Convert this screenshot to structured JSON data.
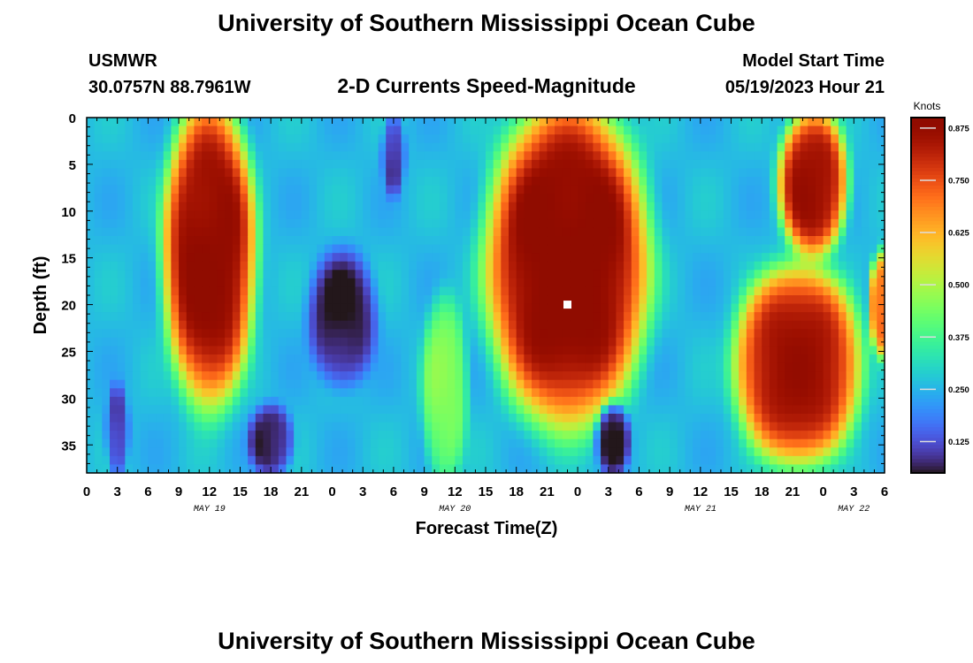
{
  "header": {
    "title": "University of Southern Mississippi Ocean Cube",
    "station": "USMWR",
    "coords": "30.0757N  88.7961W",
    "product": "2-D Currents Speed-Magnitude",
    "model_label": "Model Start Time",
    "model_time": "05/19/2023 Hour 21"
  },
  "footer": {
    "title": "University of Southern Mississippi Ocean Cube"
  },
  "chart_data": {
    "type": "heatmap",
    "title": "2-D Currents Speed-Magnitude",
    "xlabel": "Forecast Time(Z)",
    "ylabel": "Depth (ft)",
    "x_range_hours": [
      0,
      78
    ],
    "y_range_ft": [
      0,
      38
    ],
    "y_inverted": true,
    "xticks": [
      "0",
      "3",
      "6",
      "9",
      "12",
      "15",
      "18",
      "21",
      "0",
      "3",
      "6",
      "9",
      "12",
      "15",
      "18",
      "21",
      "0",
      "3",
      "6",
      "9",
      "12",
      "15",
      "18",
      "21",
      "0",
      "3",
      "6"
    ],
    "date_labels": [
      {
        "label": "MAY 19",
        "hour": 12
      },
      {
        "label": "MAY 20",
        "hour": 36
      },
      {
        "label": "MAY 21",
        "hour": 60
      },
      {
        "label": "MAY 22",
        "hour": 75
      }
    ],
    "yticks": [
      "0",
      "5",
      "10",
      "15",
      "20",
      "25",
      "30",
      "35"
    ],
    "colorbar": {
      "title": "Knots",
      "min": 0.05,
      "max": 0.9,
      "ticks": [
        "0.125",
        "0.250",
        "0.375",
        "0.500",
        "0.625",
        "0.750",
        "0.875"
      ],
      "colormap": "turbo"
    },
    "marker": {
      "hour": 47,
      "depth": 20,
      "color": "#ffffff"
    },
    "grid_background_knots": 0.26,
    "features": [
      {
        "type": "high",
        "hour_start": 8,
        "hour_end": 16,
        "depth_top": 0,
        "depth_bottom": 29,
        "knots": 0.88
      },
      {
        "type": "high",
        "hour_start": 40,
        "hour_end": 54,
        "depth_top": 0,
        "depth_bottom": 31,
        "knots": 0.9
      },
      {
        "type": "high",
        "hour_start": 68,
        "hour_end": 74,
        "depth_top": 0,
        "depth_bottom": 14,
        "knots": 0.85
      },
      {
        "type": "high",
        "hour_start": 64,
        "hour_end": 75,
        "depth_top": 17,
        "depth_bottom": 36,
        "knots": 0.85
      },
      {
        "type": "high",
        "hour_start": 77,
        "hour_end": 78,
        "depth_top": 15,
        "depth_bottom": 25,
        "knots": 0.72
      },
      {
        "type": "low",
        "hour_start": 22,
        "hour_end": 28,
        "depth_top": 15,
        "depth_bottom": 28,
        "knots": 0.06
      },
      {
        "type": "low",
        "hour_start": 16,
        "hour_end": 20,
        "depth_top": 31,
        "depth_bottom": 38,
        "knots": 0.07
      },
      {
        "type": "low",
        "hour_start": 50,
        "hour_end": 53,
        "depth_top": 31,
        "depth_bottom": 38,
        "knots": 0.07
      },
      {
        "type": "low",
        "hour_start": 29,
        "hour_end": 31,
        "depth_top": 0,
        "depth_bottom": 8,
        "knots": 0.1
      },
      {
        "type": "low",
        "hour_start": 2,
        "hour_end": 4,
        "depth_top": 29,
        "depth_bottom": 38,
        "knots": 0.1
      },
      {
        "type": "moderate",
        "hour_start": 33,
        "hour_end": 37,
        "depth_top": 20,
        "depth_bottom": 38,
        "knots": 0.45
      }
    ]
  }
}
